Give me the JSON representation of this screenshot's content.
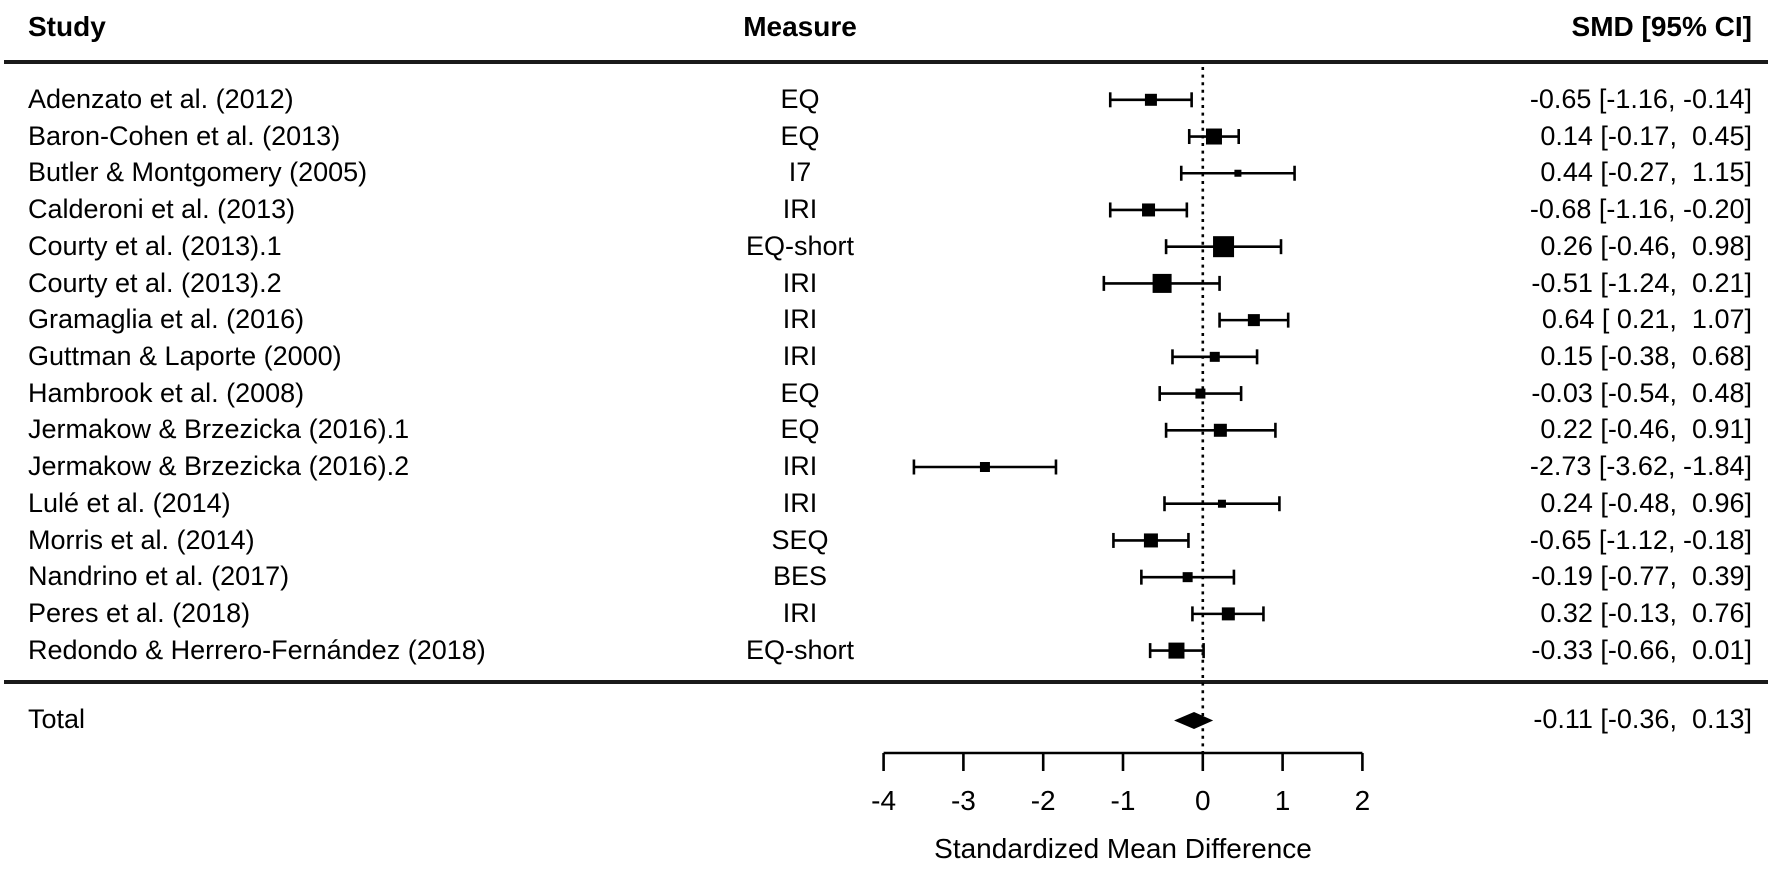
{
  "header": {
    "study": "Study",
    "measure": "Measure",
    "smd": "SMD [95% CI]"
  },
  "total": {
    "label": "Total",
    "smd_text": "-0.11 [-0.36,  0.13]"
  },
  "colors": {
    "foreground": "#000000",
    "background": "#ffffff"
  },
  "chart_data": {
    "type": "forest",
    "xlabel": "Standardized Mean Difference",
    "xlim": [
      -4,
      2
    ],
    "x_ticks": [
      -4,
      -3,
      -2,
      -1,
      0,
      1,
      2
    ],
    "zero_line": 0,
    "legend_position": "none",
    "grid": false,
    "rows": [
      {
        "study": "Adenzato et al. (2012)",
        "measure": "EQ",
        "est": -0.65,
        "lo": -1.16,
        "hi": -0.14,
        "smd_text": "-0.65 [-1.16, -0.14]",
        "size": 12
      },
      {
        "study": "Baron-Cohen et al. (2013)",
        "measure": "EQ",
        "est": 0.14,
        "lo": -0.17,
        "hi": 0.45,
        "smd_text": "0.14 [-0.17,  0.45]",
        "size": 16
      },
      {
        "study": "Butler & Montgomery (2005)",
        "measure": "I7",
        "est": 0.44,
        "lo": -0.27,
        "hi": 1.15,
        "smd_text": "0.44 [-0.27,  1.15]",
        "size": 7
      },
      {
        "study": "Calderoni et al. (2013)",
        "measure": "IRI",
        "est": -0.68,
        "lo": -1.16,
        "hi": -0.2,
        "smd_text": "-0.68 [-1.16, -0.20]",
        "size": 13
      },
      {
        "study": "Courty et al. (2013).1",
        "measure": "EQ-short",
        "est": 0.26,
        "lo": -0.46,
        "hi": 0.98,
        "smd_text": "0.26 [-0.46,  0.98]",
        "size": 21
      },
      {
        "study": "Courty et al. (2013).2",
        "measure": "IRI",
        "est": -0.51,
        "lo": -1.24,
        "hi": 0.21,
        "smd_text": "-0.51 [-1.24,  0.21]",
        "size": 19
      },
      {
        "study": "Gramaglia et al. (2016)",
        "measure": "IRI",
        "est": 0.64,
        "lo": 0.21,
        "hi": 1.07,
        "smd_text": "0.64 [ 0.21,  1.07]",
        "size": 12
      },
      {
        "study": "Guttman & Laporte (2000)",
        "measure": "IRI",
        "est": 0.15,
        "lo": -0.38,
        "hi": 0.68,
        "smd_text": "0.15 [-0.38,  0.68]",
        "size": 10
      },
      {
        "study": "Hambrook et al. (2008)",
        "measure": "EQ",
        "est": -0.03,
        "lo": -0.54,
        "hi": 0.48,
        "smd_text": "-0.03 [-0.54,  0.48]",
        "size": 10
      },
      {
        "study": "Jermakow & Brzezicka (2016).1",
        "measure": "EQ",
        "est": 0.22,
        "lo": -0.46,
        "hi": 0.91,
        "smd_text": "0.22 [-0.46,  0.91]",
        "size": 13
      },
      {
        "study": "Jermakow & Brzezicka (2016).2",
        "measure": "IRI",
        "est": -2.73,
        "lo": -3.62,
        "hi": -1.84,
        "smd_text": "-2.73 [-3.62, -1.84]",
        "size": 10
      },
      {
        "study": "Lulé et al. (2014)",
        "measure": "IRI",
        "est": 0.24,
        "lo": -0.48,
        "hi": 0.96,
        "smd_text": "0.24 [-0.48,  0.96]",
        "size": 8
      },
      {
        "study": "Morris et al. (2014)",
        "measure": "SEQ",
        "est": -0.65,
        "lo": -1.12,
        "hi": -0.18,
        "smd_text": "-0.65 [-1.12, -0.18]",
        "size": 14
      },
      {
        "study": "Nandrino et al. (2017)",
        "measure": "BES",
        "est": -0.19,
        "lo": -0.77,
        "hi": 0.39,
        "smd_text": "-0.19 [-0.77,  0.39]",
        "size": 10
      },
      {
        "study": "Peres et al. (2018)",
        "measure": "IRI",
        "est": 0.32,
        "lo": -0.13,
        "hi": 0.76,
        "smd_text": "0.32 [-0.13,  0.76]",
        "size": 13
      },
      {
        "study": "Redondo & Herrero-Fernández (2018)",
        "measure": "EQ-short",
        "est": -0.33,
        "lo": -0.66,
        "hi": 0.01,
        "smd_text": "-0.33 [-0.66,  0.01]",
        "size": 16
      }
    ],
    "summary": {
      "label": "Total",
      "est": -0.11,
      "lo": -0.36,
      "hi": 0.13,
      "smd_text": "-0.11 [-0.36,  0.13]"
    }
  }
}
